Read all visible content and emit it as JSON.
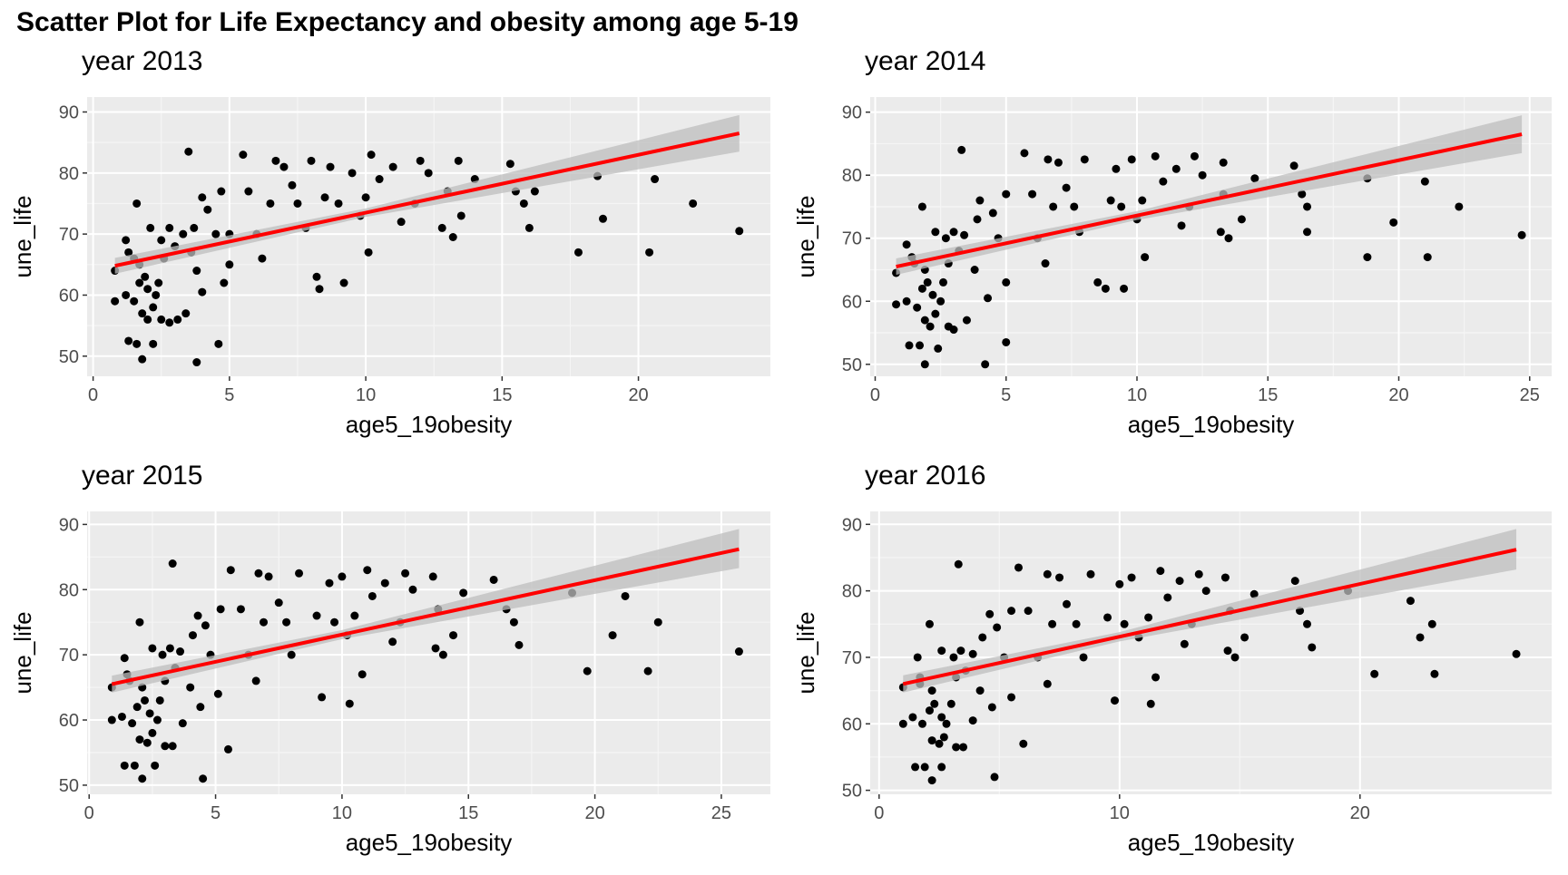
{
  "title": "Scatter Plot for Life Expectancy and obesity among age 5-19",
  "chart_data": [
    {
      "type": "scatter",
      "subtitle": "year 2013",
      "x_label": "age5_19obesity",
      "y_label": "une_life",
      "color": "#000000",
      "fit_color": "#ff0000",
      "band_color": "#bebebe",
      "grid": true,
      "xlim": [
        -0.22,
        24.84
      ],
      "ylim": [
        46.7,
        92.45
      ],
      "xticks": [
        0,
        5,
        10,
        15,
        20
      ],
      "yticks": [
        50,
        60,
        70,
        80,
        90
      ],
      "x": [
        0.8,
        0.8,
        1.2,
        1.2,
        1.3,
        1.3,
        1.5,
        1.5,
        1.6,
        1.6,
        1.7,
        1.7,
        1.8,
        1.8,
        1.9,
        2,
        2,
        2.1,
        2.2,
        2.2,
        2.3,
        2.4,
        2.5,
        2.5,
        2.6,
        2.8,
        2.8,
        3,
        3.1,
        3.3,
        3.4,
        3.5,
        3.6,
        3.7,
        3.8,
        3.8,
        4,
        4,
        4.2,
        4.5,
        4.6,
        4.7,
        4.8,
        5,
        5,
        5.5,
        5.7,
        6,
        6.2,
        6.5,
        6.7,
        7,
        7.3,
        7.5,
        7.8,
        8,
        8.2,
        8.3,
        8.5,
        8.7,
        9,
        9.2,
        9.5,
        9.8,
        10,
        10.1,
        10.2,
        10.5,
        11,
        11.3,
        11.8,
        12,
        12.3,
        12.8,
        13,
        13.2,
        13.4,
        13.5,
        14,
        15.3,
        15.5,
        15.8,
        16,
        16.2,
        17.8,
        18.5,
        18.7,
        20.4,
        20.6,
        22,
        23.7
      ],
      "y": [
        59,
        64,
        60,
        69,
        52.5,
        67,
        66,
        59,
        52,
        75,
        62,
        65,
        57,
        49.5,
        63,
        56,
        61,
        71,
        58,
        52,
        60,
        62,
        69,
        56,
        66,
        71,
        55.5,
        68,
        56,
        70,
        57,
        83.5,
        67,
        71,
        64,
        49,
        76,
        60.5,
        74,
        70,
        52,
        77,
        62,
        65,
        70,
        83,
        77,
        70,
        66,
        75,
        82,
        81,
        78,
        75,
        71,
        82,
        63,
        61,
        76,
        81,
        75,
        62,
        80,
        73,
        76,
        67,
        83,
        79,
        81,
        72,
        75,
        82,
        80,
        71,
        77,
        69.5,
        82,
        73,
        79,
        81.5,
        77,
        75,
        71,
        77,
        67,
        79.5,
        72.5,
        67,
        79,
        75,
        70.5
      ],
      "fit": {
        "x": [
          0.8,
          10,
          23.7
        ],
        "y": [
          64.8,
          73.5,
          86.5
        ],
        "lower": [
          63.5,
          72.8,
          83.5
        ],
        "upper": [
          66.1,
          74.2,
          89.5
        ]
      }
    },
    {
      "type": "scatter",
      "subtitle": "year 2014",
      "x_label": "age5_19obesity",
      "y_label": "une_life",
      "color": "#000000",
      "fit_color": "#ff0000",
      "band_color": "#bebebe",
      "grid": true,
      "xlim": [
        -0.19,
        25.84
      ],
      "ylim": [
        48.1,
        92.4
      ],
      "xticks": [
        0,
        5,
        10,
        15,
        20,
        25
      ],
      "yticks": [
        50,
        60,
        70,
        80,
        90
      ],
      "x": [
        0.8,
        0.8,
        1.2,
        1.2,
        1.3,
        1.4,
        1.5,
        1.6,
        1.7,
        1.8,
        1.8,
        1.9,
        1.9,
        1.9,
        2,
        2.1,
        2.2,
        2.3,
        2.3,
        2.4,
        2.5,
        2.6,
        2.7,
        2.8,
        2.8,
        3,
        3,
        3.2,
        3.3,
        3.4,
        3.5,
        3.8,
        3.9,
        4,
        4.2,
        4.3,
        4.5,
        4.7,
        5,
        5,
        5,
        5.7,
        6,
        6.2,
        6.5,
        6.6,
        6.8,
        7,
        7.3,
        7.6,
        7.8,
        8,
        8.5,
        8.8,
        9,
        9.2,
        9.4,
        9.5,
        9.8,
        10,
        10.2,
        10.3,
        10.7,
        11,
        11.5,
        11.7,
        12,
        12.2,
        12.5,
        13.2,
        13.3,
        13.5,
        13.3,
        14,
        14.5,
        16,
        16.3,
        16.5,
        16.5,
        18.8,
        18.8,
        19.8,
        21.1,
        21,
        22.3,
        24.7
      ],
      "y": [
        59.5,
        64.5,
        60,
        69,
        53,
        67,
        66,
        59,
        53,
        75,
        62,
        65,
        57,
        50,
        63,
        56,
        61,
        71,
        58,
        52.5,
        60,
        63,
        70,
        56,
        66,
        71,
        55.5,
        68,
        84,
        70.5,
        57,
        65,
        73,
        76,
        50,
        60.5,
        74,
        70,
        53.5,
        77,
        63,
        83.5,
        77,
        70,
        66,
        82.5,
        75,
        82,
        78,
        75,
        71,
        82.5,
        63,
        62,
        76,
        81,
        75,
        62,
        82.5,
        73,
        76,
        67,
        83,
        79,
        81,
        72,
        75,
        83,
        80,
        71,
        77,
        70,
        82,
        73,
        79.5,
        81.5,
        77,
        75,
        71,
        67,
        79.5,
        72.5,
        67,
        79,
        75,
        70.5
      ],
      "fit": {
        "x": [
          0.8,
          10,
          24.7
        ],
        "y": [
          65.5,
          73.6,
          86.5
        ],
        "lower": [
          64.2,
          72.9,
          83.5
        ],
        "upper": [
          66.8,
          74.3,
          89.5
        ]
      }
    },
    {
      "type": "scatter",
      "subtitle": "year 2015",
      "x_label": "age5_19obesity",
      "y_label": "une_life",
      "color": "#000000",
      "fit_color": "#ff0000",
      "band_color": "#bebebe",
      "grid": true,
      "xlim": [
        -0.08,
        26.94
      ],
      "ylim": [
        48.6,
        92
      ],
      "xticks": [
        0,
        5,
        10,
        15,
        20,
        25
      ],
      "yticks": [
        50,
        60,
        70,
        80,
        90
      ],
      "x": [
        0.9,
        0.9,
        1.3,
        1.4,
        1.4,
        1.5,
        1.6,
        1.7,
        1.8,
        2,
        1.9,
        2.1,
        2,
        2.1,
        2.2,
        2.3,
        2.4,
        2.5,
        2.5,
        2.6,
        2.7,
        2.8,
        2.9,
        3,
        3,
        3.2,
        3.3,
        3.4,
        3.3,
        3.6,
        3.7,
        4,
        4.1,
        4.3,
        4.5,
        4.4,
        4.6,
        4.8,
        5.5,
        5.2,
        5.1,
        5.6,
        6,
        6.3,
        6.6,
        6.7,
        6.9,
        7.1,
        7.5,
        7.8,
        8,
        8.3,
        9.2,
        10.3,
        9,
        9.5,
        9.7,
        10,
        10.2,
        10.5,
        10.8,
        11,
        11.2,
        11.7,
        12,
        12.3,
        12.5,
        12.8,
        13.7,
        13.8,
        14,
        13.6,
        14.4,
        14.8,
        16,
        16.5,
        16.8,
        17,
        19.7,
        19.1,
        20.7,
        22.1,
        21.2,
        22.5,
        25.7
      ],
      "y": [
        60,
        65,
        60.5,
        69.5,
        53,
        67,
        66,
        59.5,
        53,
        75,
        62,
        65,
        57,
        51,
        63,
        56.5,
        61,
        71,
        58,
        53,
        60,
        63,
        70,
        56,
        66,
        71,
        56,
        68,
        84,
        70.5,
        59.5,
        65,
        73,
        76,
        51,
        62,
        74.5,
        70,
        55.5,
        77,
        64,
        83,
        77,
        70,
        66,
        82.5,
        75,
        82,
        78,
        75,
        70,
        82.5,
        63.5,
        62.5,
        76,
        81,
        75,
        82,
        73,
        76,
        67,
        83,
        79,
        81,
        72,
        75,
        82.5,
        80,
        71,
        77,
        70,
        82,
        73,
        79.5,
        81.5,
        77,
        75,
        71.5,
        67.5,
        79.5,
        73,
        67.5,
        79,
        75,
        70.5
      ],
      "fit": {
        "x": [
          0.9,
          10,
          25.7
        ],
        "y": [
          65.5,
          73.1,
          86.2
        ],
        "lower": [
          64.2,
          72.4,
          83.3
        ],
        "upper": [
          66.8,
          73.8,
          89.3
        ]
      }
    },
    {
      "type": "scatter",
      "subtitle": "year 2016",
      "x_label": "age5_19obesity",
      "y_label": "une_life",
      "color": "#000000",
      "fit_color": "#ff0000",
      "band_color": "#bebebe",
      "grid": true,
      "xlim": [
        -0.37,
        27.97
      ],
      "ylim": [
        49.4,
        91.95
      ],
      "xticks": [
        0,
        10,
        20
      ],
      "yticks": [
        50,
        60,
        70,
        80,
        90
      ],
      "x": [
        1,
        1,
        1.4,
        1.6,
        1.5,
        1.7,
        1.7,
        1.8,
        1.9,
        2.1,
        2.1,
        2.2,
        2.2,
        2.2,
        2.3,
        2.5,
        2.6,
        2.6,
        2.7,
        2.6,
        2.8,
        3,
        3.1,
        3.2,
        3.2,
        3.4,
        3.5,
        3.6,
        3.3,
        3.9,
        3.9,
        4.2,
        4.3,
        4.6,
        4.8,
        4.7,
        4.9,
        5.2,
        6,
        5.5,
        5.5,
        5.8,
        6.2,
        6.6,
        7,
        7,
        7.2,
        7.5,
        7.8,
        8.2,
        8.5,
        8.8,
        9.8,
        11.3,
        9.5,
        10,
        10.2,
        10.5,
        10.8,
        11.2,
        11.5,
        11.7,
        12,
        12.5,
        12.7,
        13,
        13.3,
        13.6,
        14.5,
        14.6,
        14.8,
        14.4,
        15.2,
        15.6,
        17.3,
        17.5,
        17.8,
        18,
        20.6,
        19.5,
        22.5,
        23.1,
        22.1,
        23,
        26.5
      ],
      "y": [
        60,
        65.5,
        61,
        70,
        53.5,
        67,
        66,
        60,
        53.5,
        75,
        62,
        65,
        57.5,
        51.5,
        63,
        57,
        61,
        71,
        58,
        53.5,
        60,
        63,
        70,
        56.5,
        67,
        71,
        56.5,
        68,
        84,
        70.5,
        60.5,
        65,
        73,
        76.5,
        52,
        62.5,
        74.5,
        70,
        57,
        77,
        64,
        83.5,
        77,
        70,
        66,
        82.5,
        75,
        82,
        78,
        75,
        70,
        82.5,
        63.5,
        63,
        76,
        81,
        75,
        82,
        73,
        76,
        67,
        83,
        79,
        81.5,
        72,
        75,
        82.5,
        80,
        71,
        77,
        70,
        82,
        73,
        79.5,
        81.5,
        77,
        75,
        71.5,
        67.5,
        80,
        73,
        67.5,
        78.5,
        75,
        70.5
      ],
      "fit": {
        "x": [
          1,
          10,
          26.5
        ],
        "y": [
          66,
          73.1,
          86.2
        ],
        "lower": [
          64.7,
          72.4,
          83.2
        ],
        "upper": [
          67.3,
          73.8,
          89.3
        ]
      }
    }
  ]
}
